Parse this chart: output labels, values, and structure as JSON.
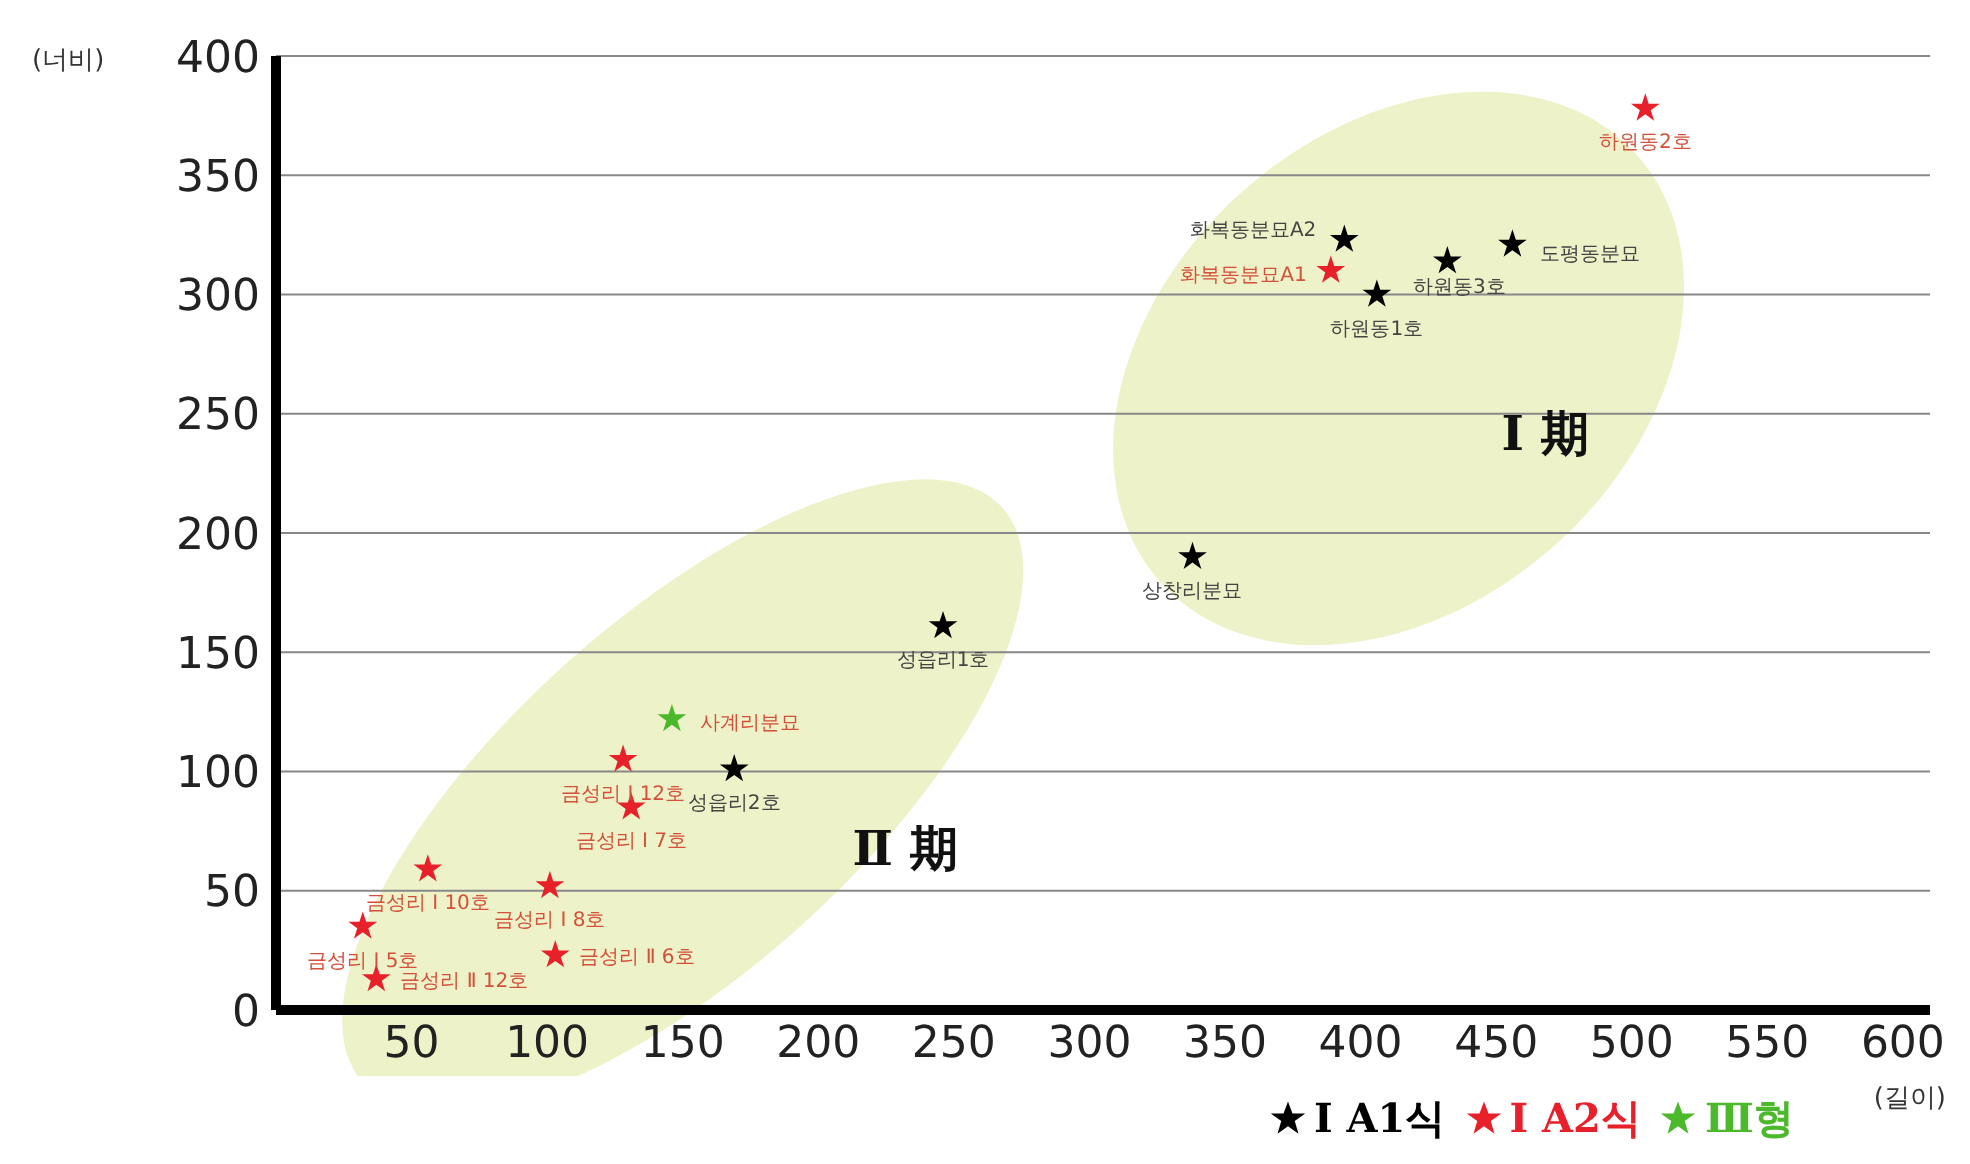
{
  "chart_data": {
    "type": "scatter",
    "ylabel": "(너비)",
    "xlabel": "(길이)",
    "xlim": [
      0,
      610
    ],
    "ylim": [
      0,
      400
    ],
    "xticks": [
      50,
      100,
      150,
      200,
      250,
      300,
      350,
      400,
      450,
      500,
      550,
      600
    ],
    "yticks": [
      0,
      50,
      100,
      150,
      200,
      250,
      300,
      350,
      400
    ],
    "grid": "y",
    "legend": "bottom right",
    "marker": "star",
    "series": [
      {
        "name": "Ⅰ A1식",
        "color": "#000000",
        "x": [
          394,
          406,
          432,
          456,
          338,
          246,
          169
        ],
        "values": [
          323,
          300,
          314,
          321,
          190,
          161,
          101
        ]
      },
      {
        "name": "Ⅰ A2식",
        "color": "#e8202a",
        "x": [
          505,
          389,
          128,
          131,
          56,
          101,
          32,
          37,
          103
        ],
        "values": [
          378,
          310,
          105,
          85,
          59,
          52,
          35,
          13,
          23
        ]
      },
      {
        "name": "Ⅲ형",
        "color": "#4cb82c",
        "x": [
          146
        ],
        "values": [
          122
        ]
      }
    ],
    "annotations": [
      "Ⅰ 期",
      "Ⅱ 期",
      {
        "text": "화복동분묘A2",
        "x": 394,
        "y": 323
      },
      {
        "text": "화복동분묘A1",
        "x": 389,
        "y": 310
      },
      {
        "text": "하원동1호",
        "x": 406,
        "y": 300
      },
      {
        "text": "하원동3호",
        "x": 432,
        "y": 314
      },
      {
        "text": "도평동분묘",
        "x": 456,
        "y": 321
      },
      {
        "text": "하원동2호",
        "x": 505,
        "y": 378
      },
      {
        "text": "상창리분묘",
        "x": 338,
        "y": 190
      },
      {
        "text": "성읍리1호",
        "x": 246,
        "y": 161
      },
      {
        "text": "성읍리2호",
        "x": 169,
        "y": 101
      },
      {
        "text": "금성리 Ⅰ 12호",
        "x": 128,
        "y": 105
      },
      {
        "text": "금성리 Ⅰ 7호",
        "x": 131,
        "y": 85
      },
      {
        "text": "금성리 Ⅰ 10호",
        "x": 56,
        "y": 59
      },
      {
        "text": "금성리 Ⅰ 8호",
        "x": 101,
        "y": 52
      },
      {
        "text": "금성리 Ⅰ 5호",
        "x": 32,
        "y": 35
      },
      {
        "text": "금성리 Ⅱ 12호",
        "x": 37,
        "y": 13
      },
      {
        "text": "금성리 Ⅱ 6호",
        "x": 103,
        "y": 23
      },
      {
        "text": "사계리분묘",
        "x": 146,
        "y": 122
      }
    ]
  }
}
